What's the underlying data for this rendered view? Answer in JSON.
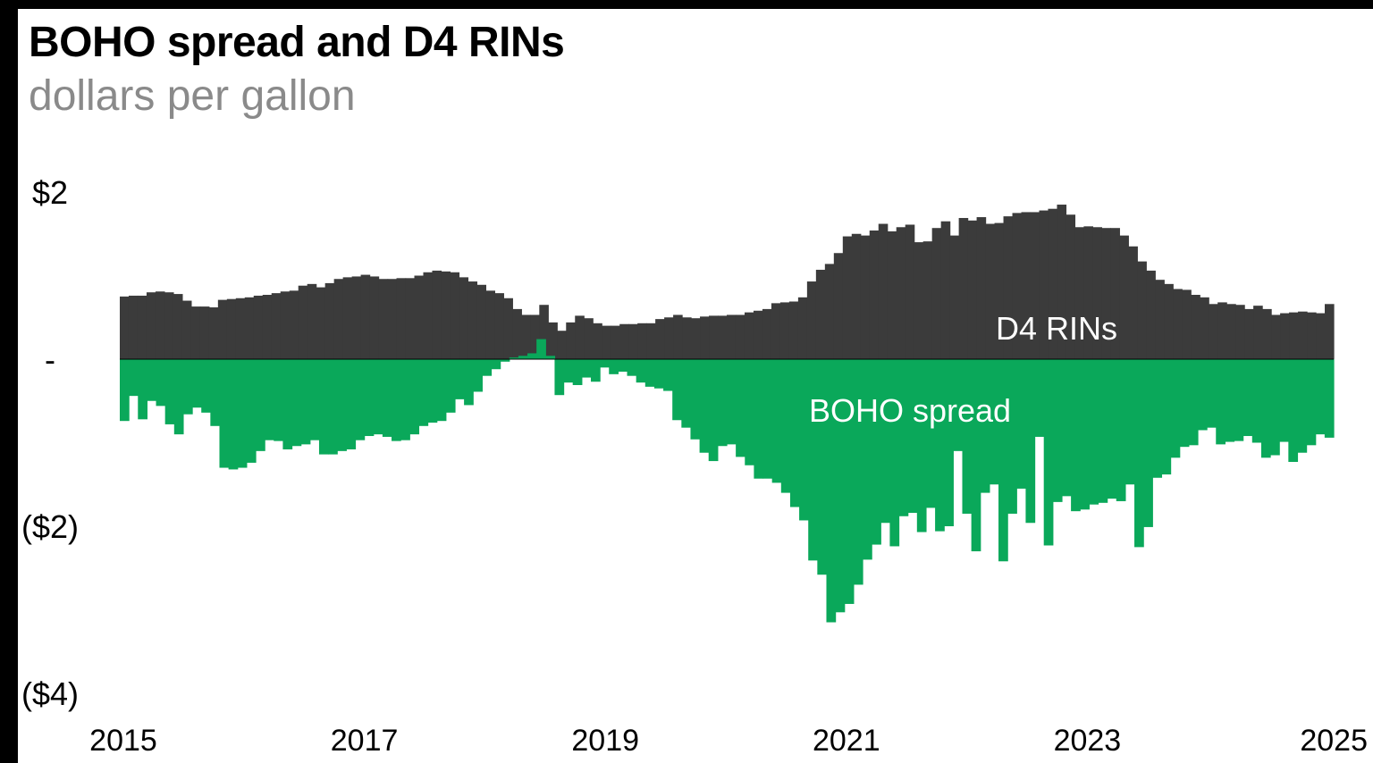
{
  "title": "BOHO spread and D4 RINs",
  "subtitle": "dollars per gallon",
  "colors": {
    "rins": "#3b3b3b",
    "boho": "#0aa85a",
    "background": "#ffffff",
    "frame": "#000000"
  },
  "chart_data": {
    "type": "area",
    "title": "BOHO spread and D4 RINs",
    "subtitle": "dollars per gallon",
    "xlabel": "",
    "ylabel": "",
    "xlim": [
      2015,
      2025
    ],
    "ylim": [
      -4,
      2
    ],
    "y_ticks": [
      {
        "value": 2,
        "label": "$2"
      },
      {
        "value": 0,
        "label": "-"
      },
      {
        "value": -2,
        "label": "($2)"
      },
      {
        "value": -4,
        "label": "($4)"
      }
    ],
    "x_ticks": [
      {
        "value": 2015,
        "label": "2015"
      },
      {
        "value": 2017,
        "label": "2017"
      },
      {
        "value": 2019,
        "label": "2019"
      },
      {
        "value": 2021,
        "label": "2021"
      },
      {
        "value": 2023,
        "label": "2023"
      },
      {
        "value": 2025,
        "label": "2025"
      }
    ],
    "grid": false,
    "legend": "none",
    "x_start": 2015.0,
    "x_step": 0.0833,
    "series": [
      {
        "name": "D4 RINs",
        "label": "D4 RINs",
        "values": [
          0.75,
          0.76,
          0.76,
          0.8,
          0.81,
          0.8,
          0.78,
          0.7,
          0.63,
          0.63,
          0.62,
          0.71,
          0.72,
          0.73,
          0.74,
          0.76,
          0.77,
          0.79,
          0.81,
          0.82,
          0.88,
          0.9,
          0.86,
          0.91,
          0.96,
          0.98,
          0.99,
          1.01,
          0.99,
          0.96,
          0.96,
          0.97,
          0.97,
          1.0,
          1.04,
          1.06,
          1.05,
          1.04,
          0.98,
          0.93,
          0.89,
          0.82,
          0.79,
          0.73,
          0.6,
          0.53,
          0.53,
          0.65,
          0.44,
          0.34,
          0.44,
          0.52,
          0.49,
          0.43,
          0.4,
          0.4,
          0.42,
          0.42,
          0.43,
          0.43,
          0.48,
          0.5,
          0.53,
          0.5,
          0.49,
          0.51,
          0.52,
          0.52,
          0.53,
          0.53,
          0.56,
          0.58,
          0.6,
          0.67,
          0.68,
          0.69,
          0.74,
          0.93,
          1.07,
          1.14,
          1.27,
          1.47,
          1.5,
          1.48,
          1.54,
          1.62,
          1.53,
          1.58,
          1.61,
          1.4,
          1.41,
          1.57,
          1.65,
          1.48,
          1.69,
          1.66,
          1.7,
          1.62,
          1.63,
          1.71,
          1.75,
          1.76,
          1.76,
          1.78,
          1.8,
          1.85,
          1.73,
          1.58,
          1.59,
          1.58,
          1.57,
          1.57,
          1.48,
          1.35,
          1.17,
          1.06,
          0.95,
          0.9,
          0.84,
          0.83,
          0.77,
          0.74,
          0.66,
          0.68,
          0.66,
          0.65,
          0.6,
          0.64,
          0.6,
          0.53,
          0.55,
          0.56,
          0.57,
          0.56,
          0.55,
          0.66
        ]
      },
      {
        "name": "BOHO spread",
        "label": "BOHO spread",
        "values": [
          -0.74,
          -0.44,
          -0.72,
          -0.5,
          -0.56,
          -0.78,
          -0.9,
          -0.66,
          -0.58,
          -0.64,
          -0.8,
          -1.3,
          -1.32,
          -1.3,
          -1.24,
          -1.1,
          -0.97,
          -0.98,
          -1.08,
          -1.04,
          -1.02,
          -0.97,
          -1.14,
          -1.14,
          -1.1,
          -1.08,
          -0.97,
          -0.92,
          -0.9,
          -0.93,
          -0.98,
          -0.97,
          -0.9,
          -0.8,
          -0.76,
          -0.74,
          -0.64,
          -0.48,
          -0.55,
          -0.39,
          -0.2,
          -0.12,
          -0.03,
          0.02,
          0.04,
          0.07,
          0.24,
          0.04,
          -0.43,
          -0.28,
          -0.31,
          -0.22,
          -0.27,
          -0.1,
          -0.18,
          -0.15,
          -0.2,
          -0.28,
          -0.33,
          -0.35,
          -0.38,
          -0.73,
          -0.82,
          -0.96,
          -1.12,
          -1.22,
          -1.04,
          -1.02,
          -1.17,
          -1.27,
          -1.43,
          -1.43,
          -1.48,
          -1.6,
          -1.77,
          -1.93,
          -2.41,
          -2.58,
          -3.15,
          -3.03,
          -2.93,
          -2.7,
          -2.4,
          -2.22,
          -1.96,
          -2.24,
          -1.88,
          -1.84,
          -2.07,
          -1.78,
          -2.06,
          -2.0,
          -1.1,
          -1.85,
          -2.3,
          -1.6,
          -1.5,
          -2.42,
          -1.85,
          -1.55,
          -1.96,
          -0.93,
          -2.23,
          -1.71,
          -1.64,
          -1.82,
          -1.8,
          -1.74,
          -1.72,
          -1.67,
          -1.7,
          -1.5,
          -2.25,
          -2.01,
          -1.42,
          -1.38,
          -1.18,
          -1.05,
          -1.03,
          -0.85,
          -0.82,
          -1.02,
          -0.99,
          -0.98,
          -0.92,
          -1.0,
          -1.18,
          -1.15,
          -0.99,
          -1.23,
          -1.12,
          -1.03,
          -0.9,
          -0.94
        ]
      }
    ]
  }
}
